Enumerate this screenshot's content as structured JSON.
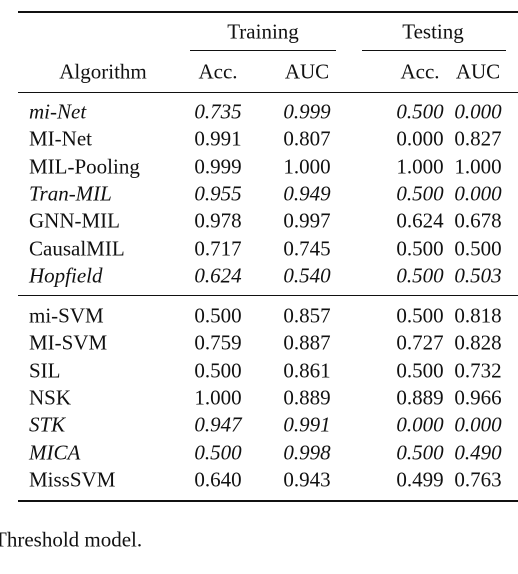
{
  "table": {
    "group_headers": [
      "Training",
      "Testing"
    ],
    "column_headers": [
      "Algorithm",
      "Acc.",
      "AUC",
      "Acc.",
      "AUC"
    ],
    "groups": [
      [
        {
          "cells": [
            "mi-Net",
            "0.735",
            "0.999",
            "0.500",
            "0.000"
          ],
          "italic": true
        },
        {
          "cells": [
            "MI-Net",
            "0.991",
            "0.807",
            "0.000",
            "0.827"
          ],
          "italic": false
        },
        {
          "cells": [
            "MIL-Pooling",
            "0.999",
            "1.000",
            "1.000",
            "1.000"
          ],
          "italic": false
        },
        {
          "cells": [
            "Tran-MIL",
            "0.955",
            "0.949",
            "0.500",
            "0.000"
          ],
          "italic": true
        },
        {
          "cells": [
            "GNN-MIL",
            "0.978",
            "0.997",
            "0.624",
            "0.678"
          ],
          "italic": false
        },
        {
          "cells": [
            "CausalMIL",
            "0.717",
            "0.745",
            "0.500",
            "0.500"
          ],
          "italic": false
        },
        {
          "cells": [
            "Hopfield",
            "0.624",
            "0.540",
            "0.500",
            "0.503"
          ],
          "italic": true
        }
      ],
      [
        {
          "cells": [
            "mi-SVM",
            "0.500",
            "0.857",
            "0.500",
            "0.818"
          ],
          "italic": false
        },
        {
          "cells": [
            "MI-SVM",
            "0.759",
            "0.887",
            "0.727",
            "0.828"
          ],
          "italic": false
        },
        {
          "cells": [
            "SIL",
            "0.500",
            "0.861",
            "0.500",
            "0.732"
          ],
          "italic": false
        },
        {
          "cells": [
            "NSK",
            "1.000",
            "0.889",
            "0.889",
            "0.966"
          ],
          "italic": false
        },
        {
          "cells": [
            "STK",
            "0.947",
            "0.991",
            "0.000",
            "0.000"
          ],
          "italic": true
        },
        {
          "cells": [
            "MICA",
            "0.500",
            "0.998",
            "0.500",
            "0.490"
          ],
          "italic": true
        },
        {
          "cells": [
            "MissSVM",
            "0.640",
            "0.943",
            "0.499",
            "0.763"
          ],
          "italic": false
        }
      ]
    ]
  },
  "caption": "Threshold model."
}
